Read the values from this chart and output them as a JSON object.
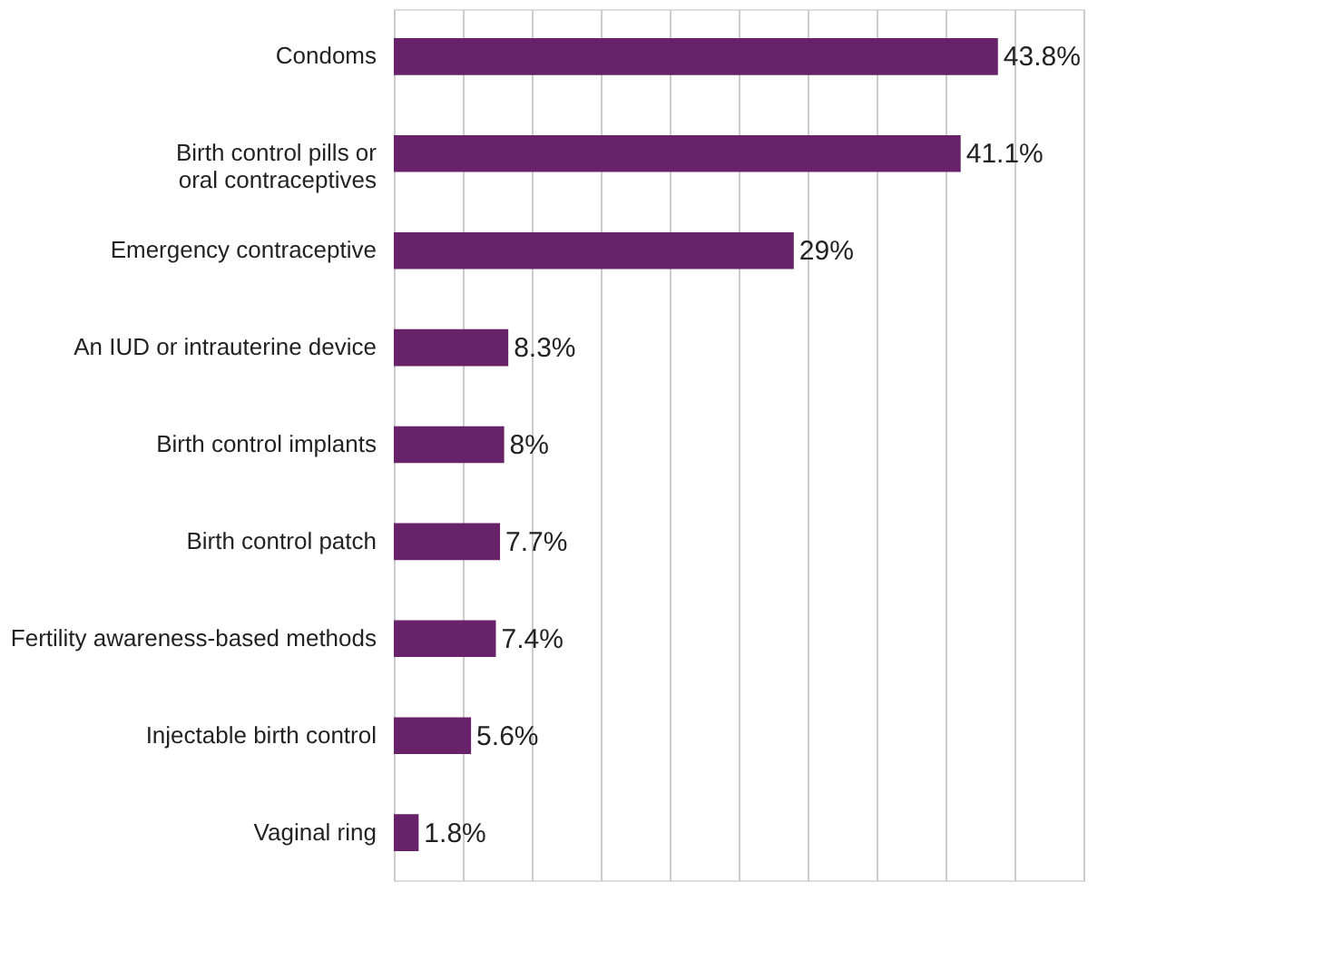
{
  "chart_data": {
    "type": "bar",
    "orientation": "horizontal",
    "categories": [
      "Condoms",
      "Birth control pills or\noral contraceptives",
      "Emergency contraceptive",
      "An IUD or intrauterine device",
      "Birth control implants",
      "Birth control patch",
      "Fertility awareness-based methods",
      "Injectable birth control",
      "Vaginal ring"
    ],
    "values": [
      43.8,
      41.1,
      29,
      8.3,
      8,
      7.7,
      7.4,
      5.6,
      1.8
    ],
    "value_labels": [
      "43.8%",
      "41.1%",
      "29%",
      "8.3%",
      "8%",
      "7.7%",
      "7.4%",
      "5.6%",
      "1.8%"
    ],
    "color": "#68226a",
    "xlim": [
      0,
      50
    ],
    "xticks": [
      {
        "value": 0,
        "label": null
      },
      {
        "value": 5,
        "label": null
      },
      {
        "value": 10,
        "label": null
      },
      {
        "value": 15,
        "label": null
      },
      {
        "value": 20,
        "label": null
      },
      {
        "value": 25,
        "label": null
      },
      {
        "value": 30,
        "label": null
      },
      {
        "value": 35,
        "label": null
      },
      {
        "value": 40,
        "label": null
      },
      {
        "value": 45,
        "label": null
      },
      {
        "value": 50,
        "label": null
      }
    ],
    "grid": "x",
    "tick_labels": "y"
  }
}
